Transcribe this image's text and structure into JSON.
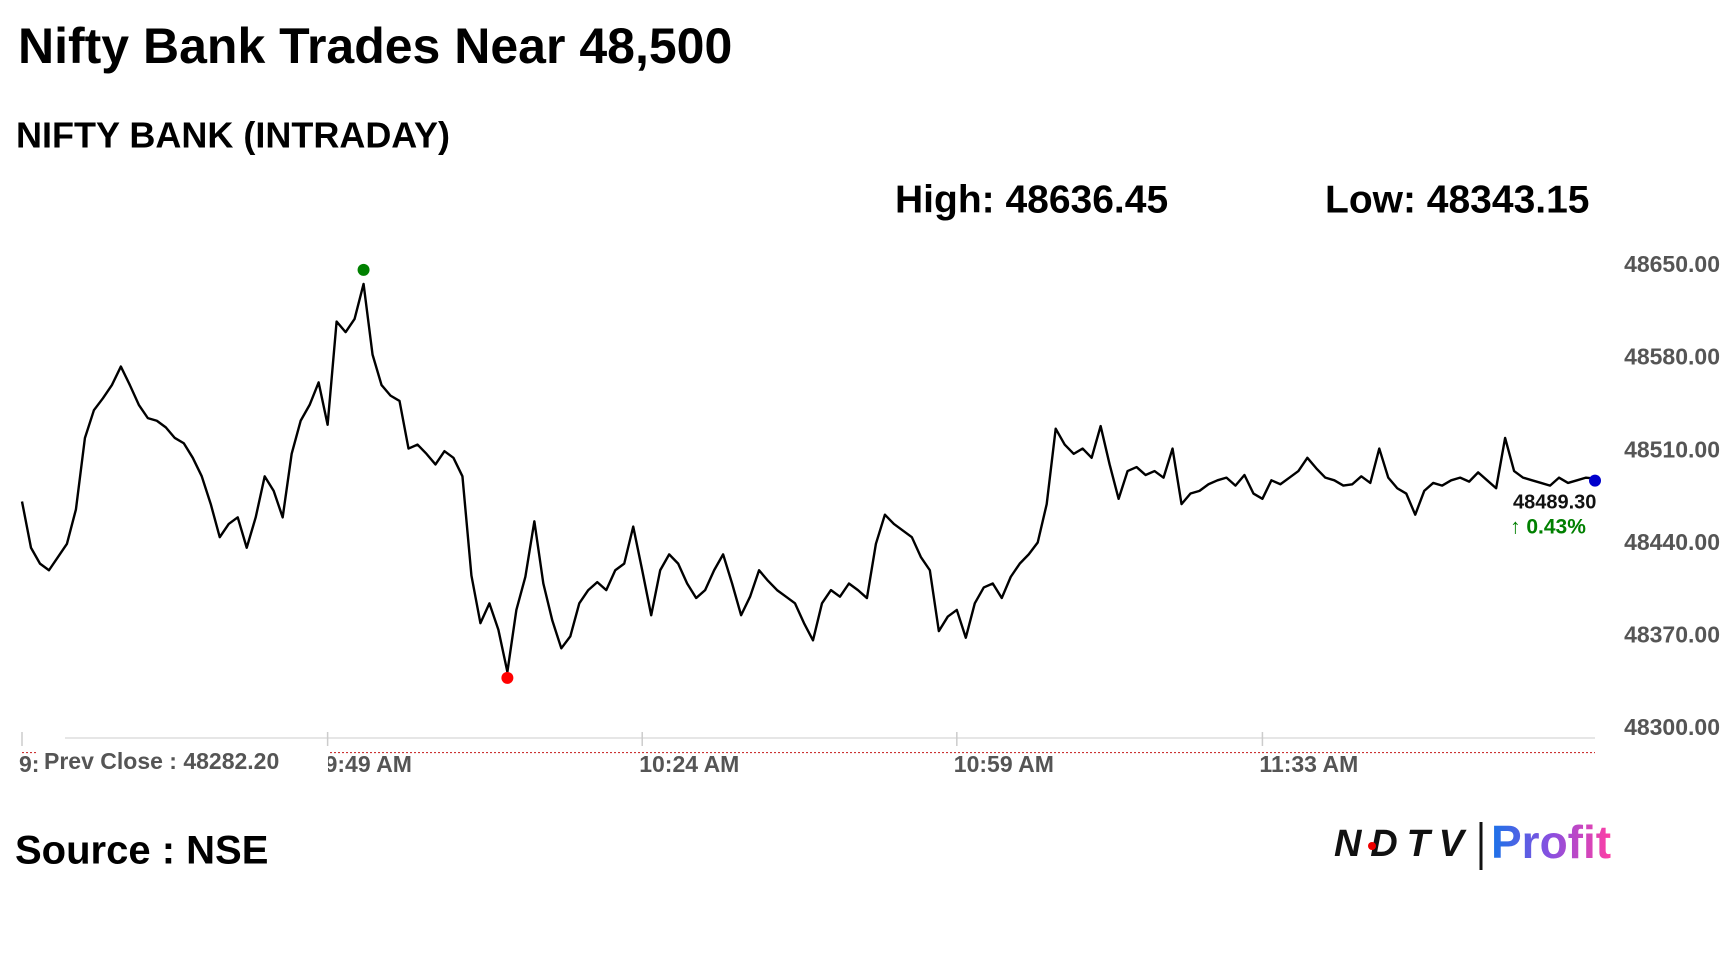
{
  "chart_data": {
    "type": "line",
    "title": "Nifty Bank Trades Near 48,500",
    "subtitle": "NIFTY BANK (INTRADAY)",
    "high_text": "High: 48636.45",
    "low_text": "Low: 48343.15",
    "prev_close": {
      "value": 48282.2,
      "label": "Prev Close : 48282.20"
    },
    "last_labels": [
      "48489.30",
      "↑ 0.43%"
    ],
    "source": "Source : NSE",
    "logo": [
      "NDTV",
      "Profit"
    ],
    "color": "#000000",
    "high_color": "#008000",
    "low_color": "#ff0000",
    "last_color": "#0000cc",
    "change_color": "#008000",
    "xlim": [
      0,
      175
    ],
    "xticks": [
      {
        "value": 0,
        "label": "9:"
      },
      {
        "value": 34,
        "label": "9:49 AM"
      },
      {
        "value": 69,
        "label": "10:24 AM"
      },
      {
        "value": 104,
        "label": "10:59 AM"
      },
      {
        "value": 138,
        "label": "11:33 AM"
      }
    ],
    "ylim": [
      48300,
      48650
    ],
    "yticks": [
      {
        "value": 48300,
        "label": "48300.00"
      },
      {
        "value": 48370,
        "label": "48370.00"
      },
      {
        "value": 48440,
        "label": "48440.00"
      },
      {
        "value": 48510,
        "label": "48510.00"
      },
      {
        "value": 48580,
        "label": "48580.00"
      },
      {
        "value": 48650,
        "label": "48650.00"
      }
    ],
    "values": [
      48472,
      48437,
      48425,
      48420,
      48430,
      48440,
      48466,
      48520,
      48541,
      48550,
      48560,
      48574,
      48560,
      48545,
      48535,
      48533,
      48528,
      48520,
      48516,
      48505,
      48491,
      48470,
      48445,
      48455,
      48460,
      48437,
      48460,
      48491,
      48480,
      48460,
      48508,
      48533,
      48545,
      48562,
      48530,
      48608,
      48600,
      48610,
      48636.45,
      48583,
      48560,
      48552,
      48548,
      48512,
      48515,
      48508,
      48500,
      48510,
      48505,
      48491,
      48416,
      48380,
      48395,
      48375,
      48343.15,
      48390,
      48415,
      48457,
      48410,
      48382,
      48361,
      48370,
      48395,
      48405,
      48411,
      48405,
      48420,
      48425,
      48453,
      48420,
      48386,
      48420,
      48432,
      48425,
      48410,
      48399,
      48405,
      48420,
      48432,
      48410,
      48386,
      48400,
      48420,
      48412,
      48405,
      48400,
      48395,
      48380,
      48367,
      48395,
      48405,
      48400,
      48410,
      48405,
      48399,
      48440,
      48462,
      48455,
      48450,
      48445,
      48430,
      48420,
      48374,
      48385,
      48390,
      48369,
      48395,
      48407,
      48410,
      48399,
      48415,
      48425,
      48432,
      48441,
      48470,
      48527,
      48515,
      48508,
      48512,
      48505,
      48529,
      48500,
      48474,
      48495,
      48498,
      48492,
      48495,
      48490,
      48512,
      48470,
      48478,
      48480,
      48485,
      48488,
      48490,
      48484,
      48492,
      48478,
      48474,
      48488,
      48485,
      48490,
      48495,
      48505,
      48497,
      48490,
      48488,
      48484,
      48485,
      48491,
      48486,
      48512,
      48490,
      48482,
      48478,
      48462,
      48480,
      48486,
      48484,
      48488,
      48490,
      48487,
      48494,
      48488,
      48482,
      48520,
      48495,
      48490,
      48488,
      48486,
      48484,
      48490,
      48486,
      48488,
      48490,
      48489.3
    ]
  }
}
